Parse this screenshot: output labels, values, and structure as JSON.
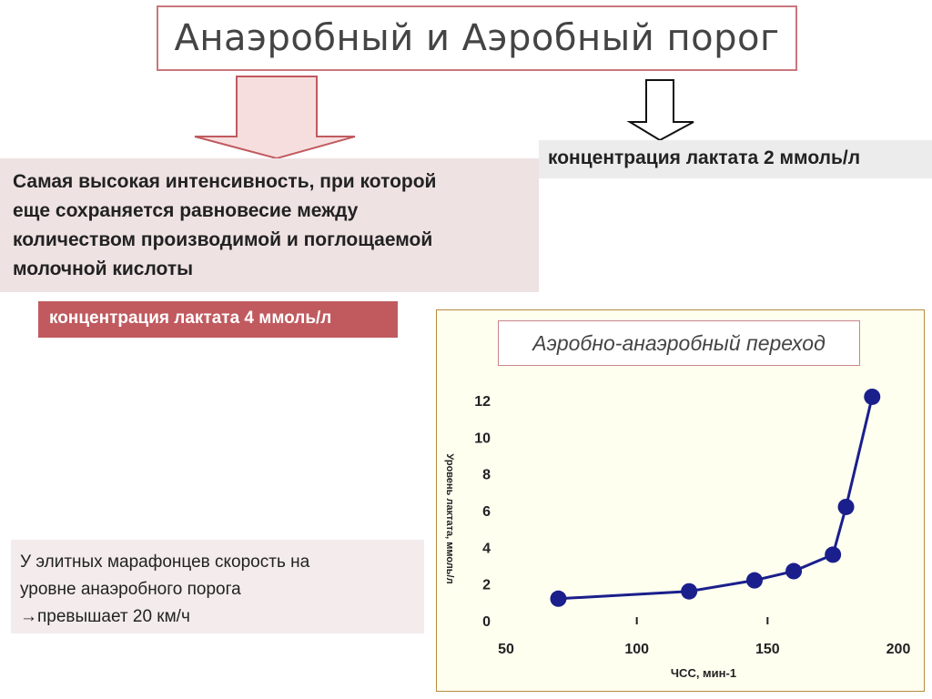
{
  "title": "Анаэробный и Аэробный порог",
  "definition": {
    "lines": [
      "Самая высокая интенсивность, при которой",
      "еще сохраняется равновесие между",
      "количеством производимой и поглощаемой",
      "молочной кислоты"
    ]
  },
  "lactate_2": "концентрация лактата 2 ммоль/л",
  "lactate_4": "концентрация лактата 4 ммоль/л",
  "note": {
    "lines": [
      "У элитных марафонцев скорость на",
      "уровне анаэробного порога",
      "→превышает 20 км/ч"
    ]
  },
  "chart_title": "Аэробно-анаэробный переход",
  "colors": {
    "title_border": "#c9777c",
    "definition_bg": "#efe2e3",
    "lactate4_bg": "#c05a5f",
    "series_line": "#1a1f8c",
    "frame_bg": "#fffff0"
  },
  "chart_data": {
    "type": "line",
    "xlabel": "ЧСС, мин-1",
    "ylabel": "Уровень лактата, ммоль/л",
    "xlim": [
      50,
      200
    ],
    "ylim": [
      0,
      12
    ],
    "xticks": [
      50,
      100,
      150,
      200
    ],
    "yticks": [
      0,
      2,
      4,
      6,
      8,
      10,
      12
    ],
    "x": [
      70,
      120,
      145,
      160,
      175,
      180,
      190
    ],
    "y": [
      1.2,
      1.6,
      2.2,
      2.7,
      3.6,
      6.2,
      12.2
    ]
  }
}
